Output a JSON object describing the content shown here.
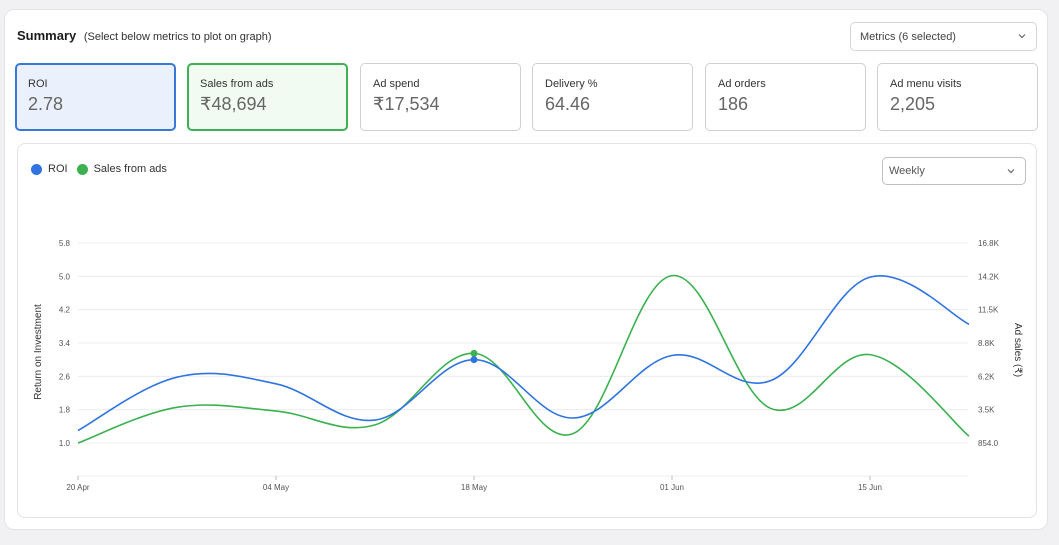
{
  "header": {
    "title": "Summary",
    "subtitle": "(Select below metrics to plot on graph)",
    "metrics_select": "Metrics (6 selected)"
  },
  "tiles": [
    {
      "label": "ROI",
      "value": "2.78"
    },
    {
      "label": "Sales from ads",
      "value": "₹48,694"
    },
    {
      "label": "Ad spend",
      "value": "₹17,534"
    },
    {
      "label": "Delivery %",
      "value": "64.46"
    },
    {
      "label": "Ad orders",
      "value": "186"
    },
    {
      "label": "Ad menu visits",
      "value": "2,205"
    }
  ],
  "colors": {
    "roi": "#2f74e0",
    "sales": "#3bb150",
    "grid": "#ececef",
    "tick": "#555555"
  },
  "period_select": "Weekly",
  "chart_data": {
    "type": "line",
    "x_ticks": [
      "20 Apr",
      "04 May",
      "18 May",
      "01 Jun",
      "15 Jun"
    ],
    "left_axis": {
      "label": "Return on Investment",
      "ticks": [
        "1.0",
        "1.8",
        "2.6",
        "3.4",
        "4.2",
        "5.0",
        "5.8"
      ],
      "range": [
        1.0,
        5.8
      ]
    },
    "right_axis": {
      "label": "Ad sales (₹)",
      "ticks": [
        "854.0",
        "3.5K",
        "6.2K",
        "8.8K",
        "11.5K",
        "14.2K",
        "16.8K"
      ],
      "range": [
        854,
        16800
      ]
    },
    "series": [
      {
        "name": "ROI",
        "axis": "left",
        "x": [
          "20 Apr",
          "27 Apr",
          "04 May",
          "11 May",
          "18 May",
          "25 May",
          "01 Jun",
          "08 Jun",
          "15 Jun",
          "22 Jun"
        ],
        "values": [
          1.3,
          2.58,
          2.42,
          1.55,
          3.0,
          1.6,
          3.1,
          2.5,
          4.98,
          3.85
        ]
      },
      {
        "name": "Sales from ads",
        "axis": "right",
        "x": [
          "20 Apr",
          "27 Apr",
          "04 May",
          "11 May",
          "18 May",
          "25 May",
          "01 Jun",
          "08 Jun",
          "15 Jun",
          "22 Jun"
        ],
        "values": [
          854,
          3700,
          3400,
          2300,
          8000,
          1600,
          14200,
          3600,
          7900,
          1400
        ]
      }
    ],
    "highlight_index": 4,
    "grid": true,
    "legend": "top-left"
  }
}
